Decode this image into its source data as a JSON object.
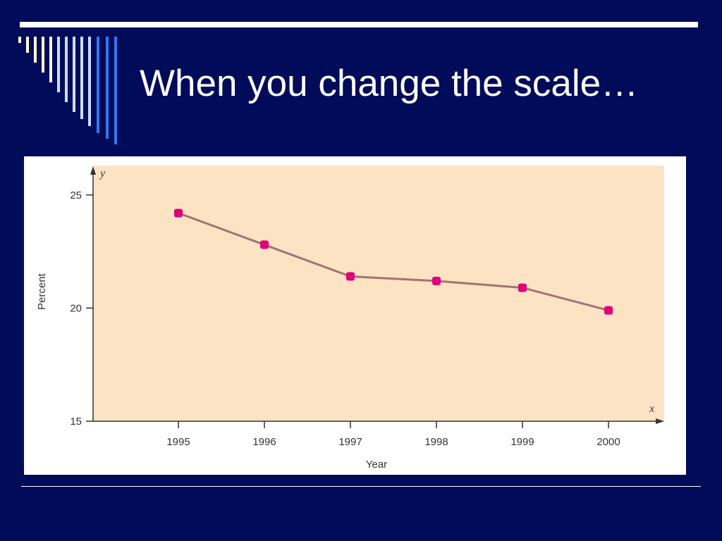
{
  "slide": {
    "title": "When you change the scale…"
  },
  "colors": {
    "background": "#000b5a",
    "plot_area": "#fce3c4",
    "line": "#a07570",
    "marker": "#e0007a",
    "stripe_palette": [
      "#ffffcc",
      "#ccddff",
      "#3377ee"
    ]
  },
  "chart_data": {
    "type": "line",
    "title": "",
    "xlabel": "Year",
    "ylabel": "Percent",
    "x_axis_letter": "x",
    "y_axis_letter": "y",
    "categories": [
      "1995",
      "1996",
      "1997",
      "1998",
      "1999",
      "2000"
    ],
    "series": [
      {
        "values": [
          24.2,
          22.8,
          21.4,
          21.2,
          20.9,
          19.9
        ]
      }
    ],
    "ylim": [
      15,
      26.3
    ],
    "yticks": [
      15,
      20,
      25
    ],
    "ytick_labels": [
      "15",
      "20",
      "25"
    ],
    "grid": false,
    "legend": "none"
  }
}
